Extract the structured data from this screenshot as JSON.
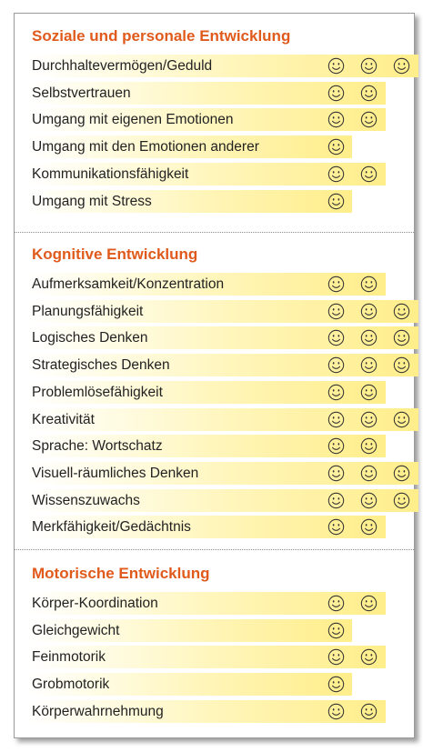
{
  "sections": [
    {
      "title": "Soziale und personale Entwicklung",
      "items": [
        {
          "label": "Durchhaltevermögen/Geduld",
          "rating": 3
        },
        {
          "label": "Selbstvertrauen",
          "rating": 2
        },
        {
          "label": "Umgang mit eigenen Emotionen",
          "rating": 2
        },
        {
          "label": "Umgang mit den Emotionen anderer",
          "rating": 1
        },
        {
          "label": "Kommunikationsfähigkeit",
          "rating": 2
        },
        {
          "label": "Umgang mit Stress",
          "rating": 1
        }
      ]
    },
    {
      "title": "Kognitive Entwicklung",
      "items": [
        {
          "label": "Aufmerksamkeit/Konzentration",
          "rating": 2
        },
        {
          "label": "Planungsfähigkeit",
          "rating": 3
        },
        {
          "label": "Logisches Denken",
          "rating": 3
        },
        {
          "label": "Strategisches Denken",
          "rating": 3
        },
        {
          "label": "Problemlösefähigkeit",
          "rating": 2
        },
        {
          "label": "Kreativität",
          "rating": 3
        },
        {
          "label": "Sprache: Wortschatz",
          "rating": 2
        },
        {
          "label": "Visuell-räumliches Denken",
          "rating": 3
        },
        {
          "label": "Wissenszuwachs",
          "rating": 3
        },
        {
          "label": "Merkfähigkeit/Gedächtnis",
          "rating": 2
        }
      ]
    },
    {
      "title": "Motorische Entwicklung",
      "items": [
        {
          "label": "Körper-Koordination",
          "rating": 2
        },
        {
          "label": "Gleichgewicht",
          "rating": 1
        },
        {
          "label": "Feinmotorik",
          "rating": 2
        },
        {
          "label": "Grobmotorik",
          "rating": 1
        },
        {
          "label": "Körperwahrnehmung",
          "rating": 2
        }
      ]
    }
  ],
  "icon": "smiley-icon",
  "colors": {
    "heading": "#e05a1c",
    "bar_start": "#ffffff",
    "bar_end": "#ffee8a",
    "text": "#222222",
    "smiley": "#333333"
  }
}
